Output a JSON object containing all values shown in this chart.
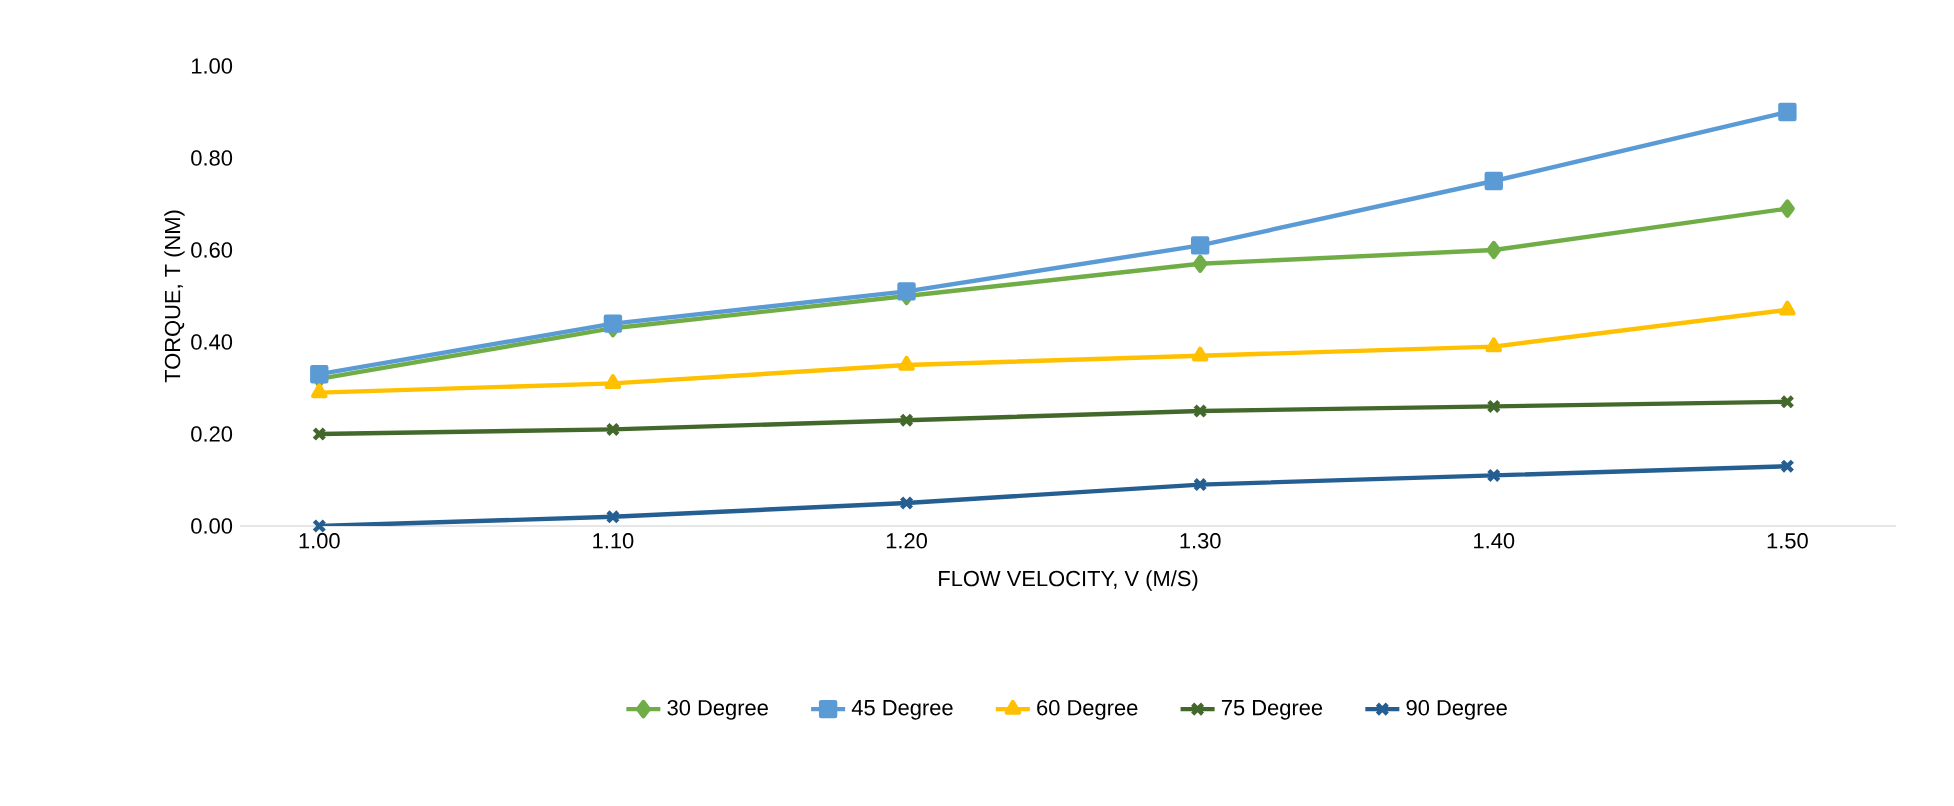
{
  "chart_data": {
    "type": "line",
    "xlabel": "FLOW VELOCITY, V (M/S)",
    "ylabel": "TORQUE, T (NM)",
    "categories": [
      "1.00",
      "1.10",
      "1.20",
      "1.30",
      "1.40",
      "1.50"
    ],
    "ylim": [
      0,
      1
    ],
    "yticks": [
      {
        "value": 0,
        "label": "0.00"
      },
      {
        "value": 0.2,
        "label": "0.20"
      },
      {
        "value": 0.4,
        "label": "0.40"
      },
      {
        "value": 0.6,
        "label": "0.60"
      },
      {
        "value": 0.8,
        "label": "0.80"
      },
      {
        "value": 1,
        "label": "1.00"
      }
    ],
    "grid": false,
    "legend": "bottom",
    "line_style": "solid",
    "series": [
      {
        "name": "30 Degree",
        "color": "#70ad47",
        "marker": "diamond",
        "values": [
          0.32,
          0.43,
          0.5,
          0.57,
          0.6,
          0.69
        ]
      },
      {
        "name": "45 Degree",
        "color": "#5b9bd5",
        "marker": "square",
        "values": [
          0.33,
          0.44,
          0.51,
          0.61,
          0.75,
          0.9
        ]
      },
      {
        "name": "60 Degree",
        "color": "#ffc000",
        "marker": "triangle",
        "values": [
          0.29,
          0.31,
          0.35,
          0.37,
          0.39,
          0.47
        ]
      },
      {
        "name": "75 Degree",
        "color": "#43682b",
        "marker": "cross",
        "values": [
          0.2,
          0.21,
          0.23,
          0.25,
          0.26,
          0.27
        ]
      },
      {
        "name": "90 Degree",
        "color": "#255e91",
        "marker": "cross",
        "values": [
          0.0,
          0.02,
          0.05,
          0.09,
          0.11,
          0.13
        ]
      }
    ]
  }
}
